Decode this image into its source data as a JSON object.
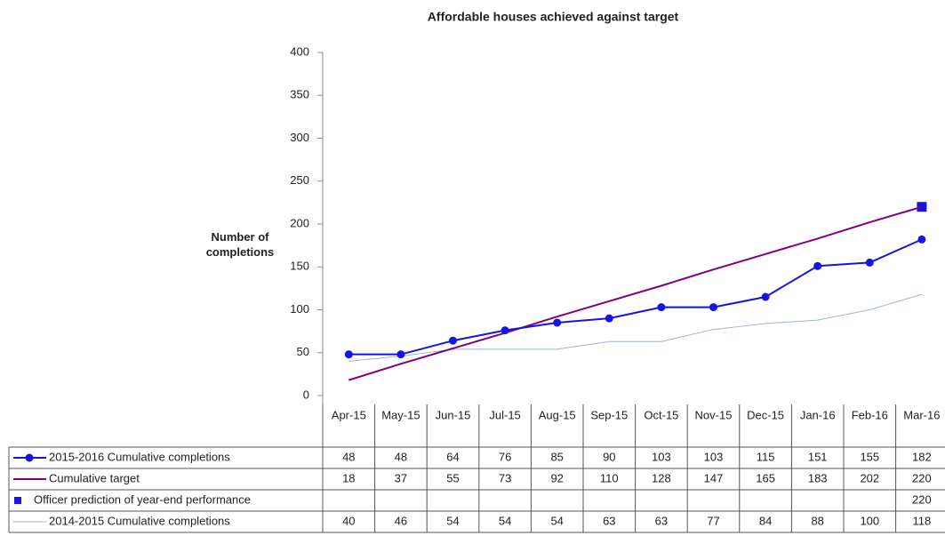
{
  "chart_data": {
    "type": "line",
    "title": "Affordable houses achieved against target",
    "y_label": "Number of completions",
    "categories": [
      "Apr-15",
      "May-15",
      "Jun-15",
      "Jul-15",
      "Aug-15",
      "Sep-15",
      "Oct-15",
      "Nov-15",
      "Dec-15",
      "Jan-16",
      "Feb-16",
      "Mar-16"
    ],
    "series": [
      {
        "name": "2015-2016 Cumulative completions",
        "color": "#1414e6",
        "marker": "circle",
        "line": true,
        "width": 2,
        "values": [
          48,
          48,
          64,
          76,
          85,
          90,
          103,
          103,
          115,
          151,
          155,
          182
        ]
      },
      {
        "name": "Cumulative target",
        "color": "#800080",
        "marker": "none",
        "line": true,
        "width": 2,
        "values": [
          18,
          37,
          55,
          73,
          92,
          110,
          128,
          147,
          165,
          183,
          202,
          220
        ]
      },
      {
        "name": "Officer prediction of year-end performance",
        "color": "#1414f0",
        "marker": "square",
        "line": false,
        "width": 0,
        "values": [
          null,
          null,
          null,
          null,
          null,
          null,
          null,
          null,
          null,
          null,
          null,
          220
        ]
      },
      {
        "name": "2014-2015 Cumulative completions",
        "color": "#9fb2d9",
        "marker": "none",
        "line": true,
        "width": 1,
        "values": [
          40,
          46,
          54,
          54,
          54,
          63,
          63,
          77,
          84,
          88,
          100,
          118
        ]
      }
    ],
    "ylim": [
      0,
      400
    ],
    "yticks": [
      0,
      50,
      100,
      150,
      200,
      250,
      300,
      350,
      400
    ],
    "grid": false
  }
}
